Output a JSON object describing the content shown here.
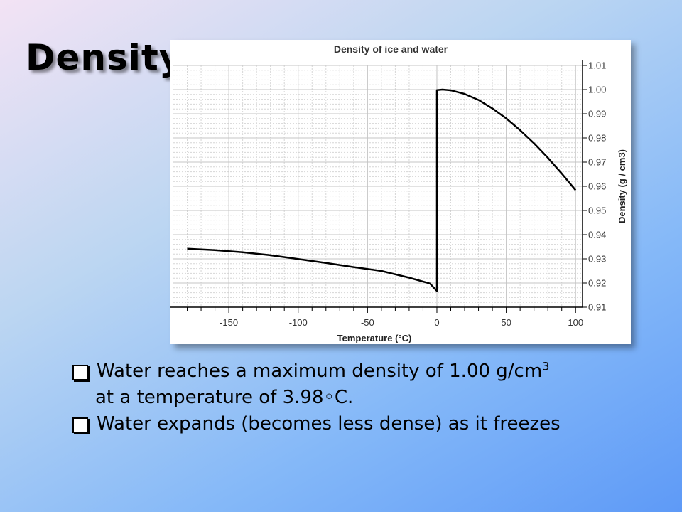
{
  "slide": {
    "title": "Density",
    "bullets": [
      {
        "text": "Water reaches a maximum density of 1.00 g/cm",
        "sup": "3",
        "continuation": "at a temperature of 3.98◦C."
      },
      {
        "text": "Water expands (becomes less dense) as it freezes"
      }
    ]
  },
  "chart_data": {
    "type": "line",
    "title": "Density of ice and water",
    "xlabel": "Temperature (°C)",
    "ylabel": "Density (g / cm3)",
    "xlim": [
      -190,
      105
    ],
    "ylim": [
      0.91,
      1.01
    ],
    "x_ticks": [
      -150,
      -100,
      -50,
      0,
      50,
      100
    ],
    "y_ticks": [
      0.91,
      0.92,
      0.93,
      0.94,
      0.95,
      0.96,
      0.97,
      0.98,
      0.99,
      1.0,
      1.01
    ],
    "y_tick_labels": [
      "0.91",
      "0.92",
      "0.93",
      "0.94",
      "0.95",
      "0.96",
      "0.97",
      "0.98",
      "0.99",
      "1.00",
      "1.01"
    ],
    "grid": true,
    "y_axis_side": "right",
    "line_color": "#000000",
    "series": [
      {
        "x": [
          -180,
          -160,
          -140,
          -120,
          -100,
          -80,
          -60,
          -40,
          -20,
          -5,
          0,
          0,
          4,
          10,
          20,
          30,
          40,
          50,
          60,
          70,
          80,
          90,
          100
        ],
        "y": [
          0.9342,
          0.9336,
          0.9327,
          0.9315,
          0.9299,
          0.9283,
          0.9266,
          0.925,
          0.9222,
          0.9198,
          0.9167,
          0.9998,
          1.0,
          0.9997,
          0.9982,
          0.9957,
          0.9922,
          0.9881,
          0.9832,
          0.9778,
          0.9718,
          0.9653,
          0.9584
        ]
      }
    ]
  }
}
